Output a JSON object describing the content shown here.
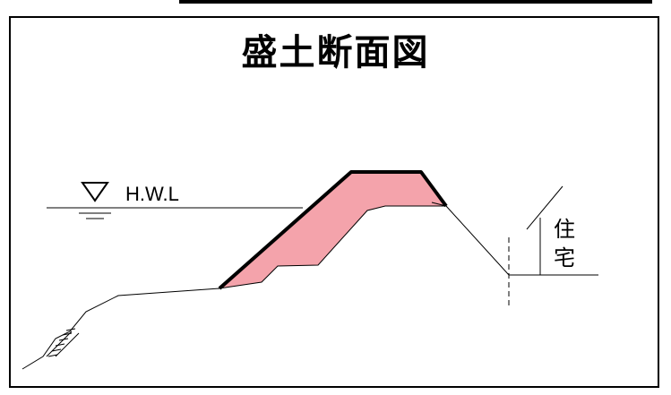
{
  "title": "盛土断面図",
  "water_level_label": "H.W.L",
  "house_label_1": "住",
  "house_label_2": "宅",
  "colors": {
    "embankment_fill": "#f4a3ab",
    "line": "#000000"
  }
}
